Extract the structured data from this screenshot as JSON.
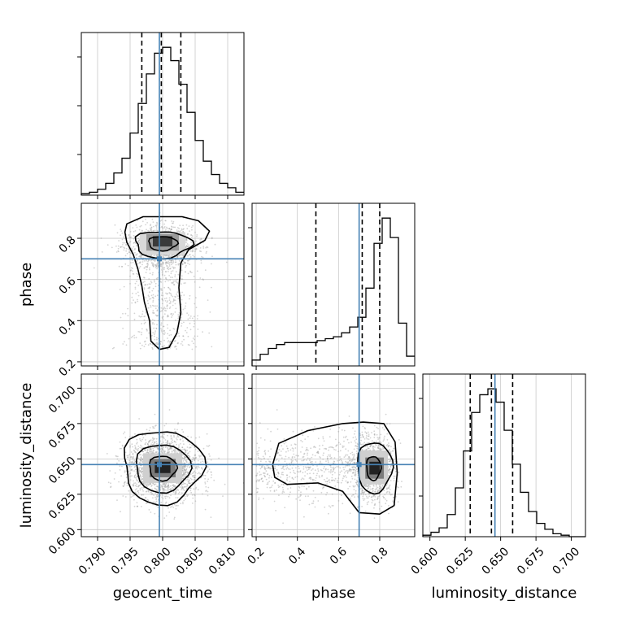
{
  "colors": {
    "truth": "#4682b4",
    "line": "#000000",
    "grid": "#c8c8c8",
    "scatter": "#a0a0a0"
  },
  "chart_data": {
    "type": "corner",
    "parameters": [
      "geocent_time",
      "phase",
      "luminosity_distance"
    ],
    "axes_labels": {
      "geocent_time": "geocent_time",
      "phase": "phase",
      "luminosity_distance": "luminosity_distance"
    },
    "ranges": {
      "geocent_time": [
        0.7875,
        0.8125
      ],
      "phase": [
        0.18,
        0.97
      ],
      "luminosity_distance": [
        0.595,
        0.71
      ]
    },
    "ticks": {
      "geocent_time": [
        "0.790",
        "0.795",
        "0.800",
        "0.805",
        "0.810"
      ],
      "phase": [
        "0.2",
        "0.4",
        "0.6",
        "0.8"
      ],
      "luminosity_distance": [
        "0.600",
        "0.625",
        "0.650",
        "0.675",
        "0.700"
      ]
    },
    "truths": {
      "geocent_time": 0.7995,
      "phase": 0.7,
      "luminosity_distance": 0.646
    },
    "quantiles": {
      "geocent_time": [
        0.7968,
        0.7998,
        0.8028
      ],
      "phase": [
        0.49,
        0.715,
        0.8
      ],
      "luminosity_distance": [
        0.6285,
        0.6435,
        0.6585
      ]
    },
    "histograms": {
      "geocent_time": {
        "edges_start": 0.7875,
        "bin_width": 0.00125,
        "counts": [
          1,
          2,
          4,
          8,
          15,
          25,
          42,
          62,
          82,
          96,
          100,
          91,
          75,
          56,
          37,
          23,
          14,
          8,
          5,
          2
        ]
      },
      "phase": {
        "edges_start": 0.18,
        "bin_width": 0.0395,
        "counts": [
          3,
          6,
          9,
          11,
          12,
          12,
          12,
          12,
          13,
          14,
          15,
          17,
          20,
          25,
          40,
          63,
          76,
          66,
          22,
          5
        ]
      },
      "luminosity_distance": {
        "edges_start": 0.595,
        "bin_width": 0.00575,
        "counts": [
          1,
          3,
          6,
          15,
          33,
          58,
          84,
          96,
          100,
          91,
          72,
          49,
          30,
          17,
          9,
          5,
          2,
          1,
          0,
          0
        ]
      }
    }
  }
}
